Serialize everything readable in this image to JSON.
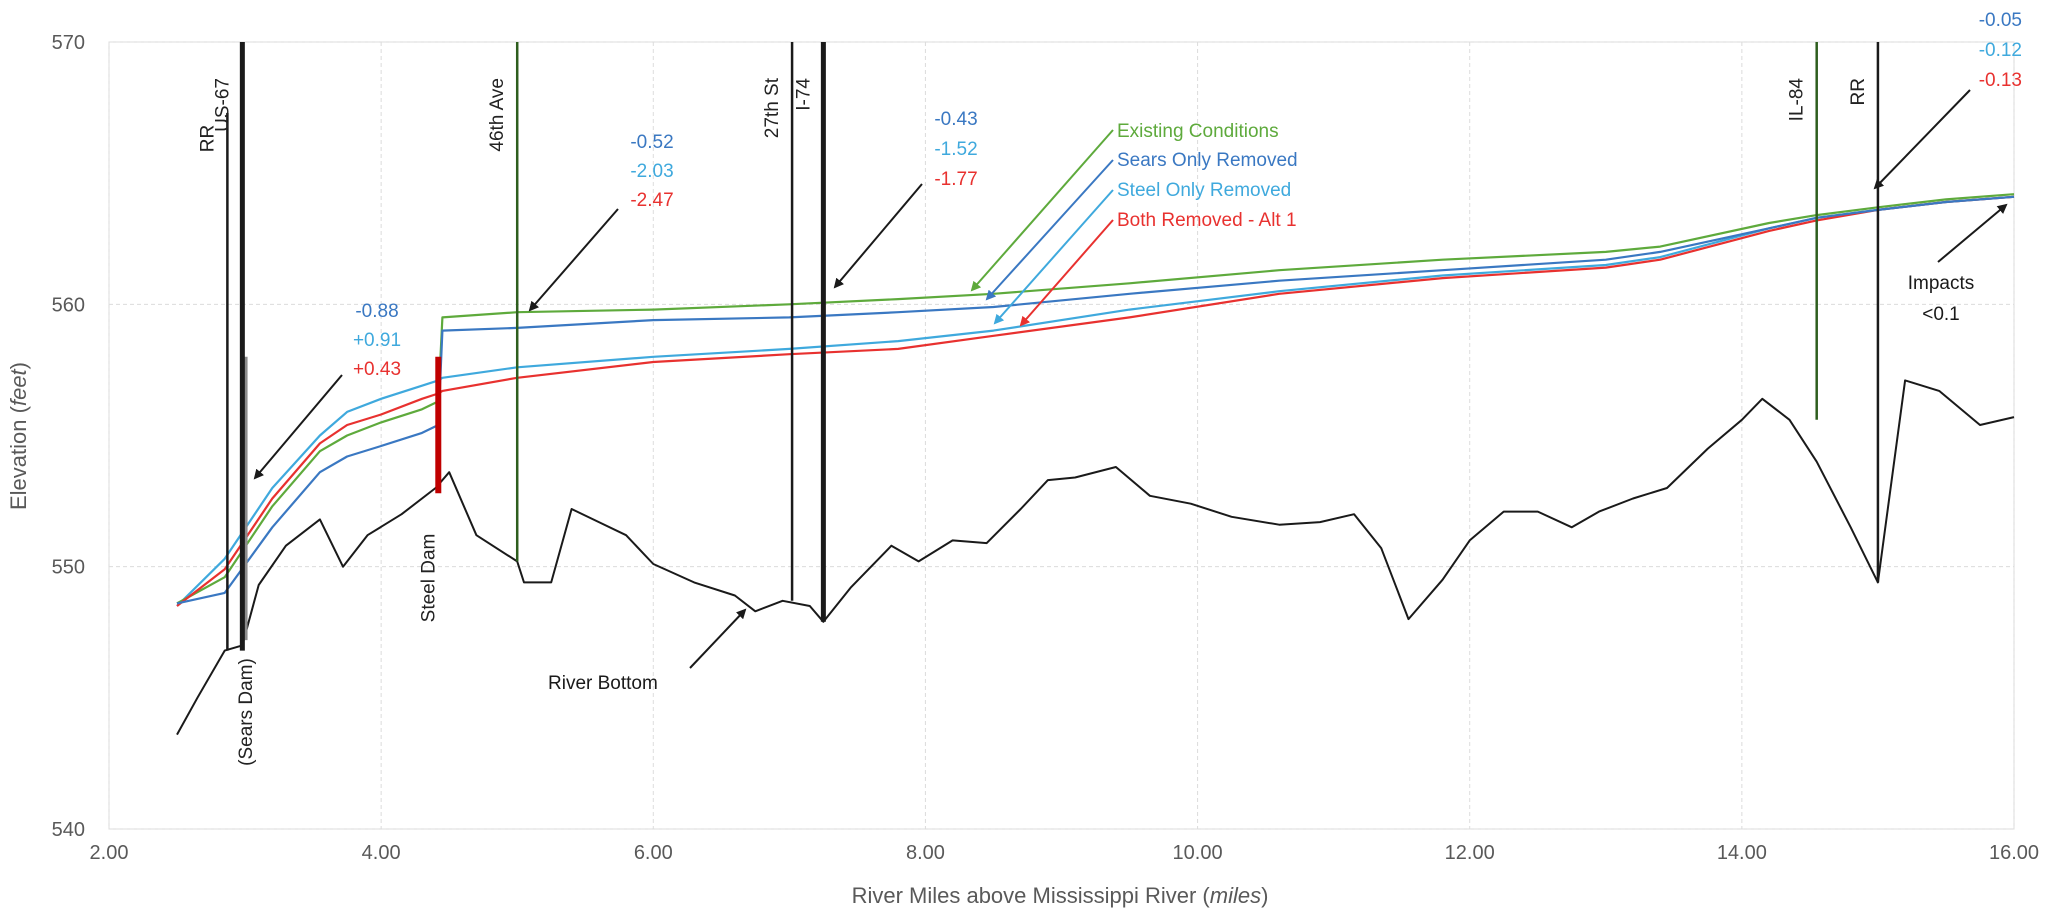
{
  "chart_data": {
    "type": "line",
    "title": "",
    "xlabel": "River Miles above Mississippi River",
    "xlabel_unit": "miles",
    "ylabel": "Elevation",
    "ylabel_unit": "feet",
    "xlim": [
      2.0,
      16.0
    ],
    "ylim": [
      540,
      570
    ],
    "x_ticks": [
      "2.00",
      "4.00",
      "6.00",
      "8.00",
      "10.00",
      "12.00",
      "14.00",
      "16.00"
    ],
    "y_ticks": [
      "540",
      "550",
      "560",
      "570"
    ],
    "grid": true,
    "legend_placement": "annotations near curves",
    "colors": {
      "existing": "#5eaa3c",
      "sears": "#3a78c2",
      "steel": "#3fa9dd",
      "both": "#e8312f",
      "river_bottom": "#1a1a1a",
      "steel_dam": "#c00000",
      "sears_dam": "#8c8c8c",
      "grid": "#dcdcdc"
    },
    "series": [
      {
        "key": "existing",
        "name": "Existing Conditions",
        "x": [
          2.5,
          2.85,
          3.2,
          3.55,
          3.75,
          4.0,
          4.3,
          4.42,
          4.45,
          5.0,
          6.0,
          7.0,
          7.8,
          8.5,
          9.5,
          10.6,
          11.8,
          13.0,
          13.4,
          14.2,
          14.55,
          15.0,
          15.5,
          16.0
        ],
        "y": [
          548.6,
          549.6,
          552.3,
          554.4,
          555.0,
          555.5,
          556.0,
          556.3,
          559.5,
          559.7,
          559.8,
          560.0,
          560.2,
          560.4,
          560.8,
          561.3,
          561.7,
          562.0,
          562.2,
          563.1,
          563.4,
          563.7,
          564.0,
          564.2
        ]
      },
      {
        "key": "sears",
        "name": "Sears Only Removed",
        "x": [
          2.5,
          2.85,
          3.2,
          3.55,
          3.75,
          4.0,
          4.3,
          4.42,
          4.45,
          5.0,
          6.0,
          7.0,
          7.8,
          8.5,
          9.5,
          10.6,
          11.8,
          13.0,
          13.4,
          14.2,
          14.55,
          15.0,
          15.5,
          16.0
        ],
        "y": [
          548.6,
          549.0,
          551.5,
          553.6,
          554.2,
          554.6,
          555.1,
          555.4,
          559.0,
          559.1,
          559.4,
          559.5,
          559.7,
          559.9,
          560.4,
          560.9,
          561.3,
          561.7,
          562.0,
          562.9,
          563.3,
          563.6,
          563.9,
          564.1
        ]
      },
      {
        "key": "steel",
        "name": "Steel Only Removed",
        "x": [
          2.5,
          2.85,
          3.2,
          3.55,
          3.75,
          4.0,
          4.3,
          4.42,
          4.45,
          5.0,
          6.0,
          7.0,
          7.8,
          8.5,
          9.5,
          10.6,
          11.8,
          13.0,
          13.4,
          14.2,
          14.55,
          15.0,
          15.5,
          16.0
        ],
        "y": [
          548.5,
          550.3,
          553.0,
          555.0,
          555.9,
          556.4,
          556.9,
          557.1,
          557.2,
          557.6,
          558.0,
          558.3,
          558.6,
          559.0,
          559.8,
          560.5,
          561.1,
          561.5,
          561.8,
          562.9,
          563.3,
          563.6,
          563.9,
          564.1
        ]
      },
      {
        "key": "both",
        "name": "Both Removed - Alt 1",
        "x": [
          2.5,
          2.85,
          3.2,
          3.55,
          3.75,
          4.0,
          4.3,
          4.42,
          4.45,
          5.0,
          6.0,
          7.0,
          7.8,
          8.5,
          9.5,
          10.6,
          11.8,
          13.0,
          13.4,
          14.2,
          14.55,
          15.0,
          15.5,
          16.0
        ],
        "y": [
          548.5,
          549.9,
          552.6,
          554.7,
          555.4,
          555.8,
          556.4,
          556.6,
          556.7,
          557.2,
          557.8,
          558.1,
          558.3,
          558.8,
          559.5,
          560.4,
          561.0,
          561.4,
          561.7,
          562.8,
          563.2,
          563.6,
          563.9,
          564.1
        ]
      },
      {
        "key": "river_bottom",
        "name": "River Bottom",
        "x": [
          2.5,
          2.65,
          2.85,
          2.98,
          3.1,
          3.3,
          3.55,
          3.72,
          3.9,
          4.15,
          4.4,
          4.5,
          4.7,
          5.0,
          5.05,
          5.25,
          5.4,
          5.6,
          5.8,
          6.0,
          6.3,
          6.6,
          6.75,
          6.95,
          7.15,
          7.25,
          7.45,
          7.75,
          7.95,
          8.2,
          8.45,
          8.7,
          8.9,
          9.1,
          9.4,
          9.65,
          9.95,
          10.25,
          10.6,
          10.9,
          11.15,
          11.35,
          11.55,
          11.8,
          12.0,
          12.25,
          12.5,
          12.75,
          12.95,
          13.2,
          13.45,
          13.75,
          14.0,
          14.15,
          14.35,
          14.55,
          14.8,
          15.0,
          15.2,
          15.45,
          15.75,
          16.0
        ],
        "y": [
          543.6,
          545.0,
          546.8,
          547.0,
          549.3,
          550.8,
          551.8,
          550.0,
          551.2,
          552.0,
          553.0,
          553.6,
          551.2,
          550.2,
          549.4,
          549.4,
          552.2,
          551.7,
          551.2,
          550.1,
          549.4,
          548.9,
          548.3,
          548.7,
          548.5,
          547.9,
          549.2,
          550.8,
          550.2,
          551.0,
          550.9,
          552.2,
          553.3,
          553.4,
          553.8,
          552.7,
          552.4,
          551.9,
          551.6,
          551.7,
          552.0,
          550.7,
          548.0,
          549.5,
          551.0,
          552.1,
          552.1,
          551.5,
          552.1,
          552.6,
          553.0,
          554.5,
          555.6,
          556.4,
          555.6,
          554.0,
          551.5,
          549.4,
          557.1,
          556.7,
          555.4,
          555.7
        ]
      }
    ],
    "structures": [
      {
        "label": "RR",
        "x": 2.87,
        "y_top": 567.3,
        "y_bottom": 546.8,
        "color": "#1a1a1a",
        "weight": "thin"
      },
      {
        "label": "US-67",
        "x": 2.98,
        "y_top": 570,
        "y_bottom": 546.8,
        "color": "#1a1a1a",
        "weight": "thick"
      },
      {
        "label": "46th Ave",
        "x": 5.0,
        "y_top": 570,
        "y_bottom": 550.2,
        "color": "#2e5e1e",
        "weight": "thin"
      },
      {
        "label": "27th St",
        "x": 7.02,
        "y_top": 570,
        "y_bottom": 548.7,
        "color": "#1a1a1a",
        "weight": "thin"
      },
      {
        "label": "I-74",
        "x": 7.25,
        "y_top": 570,
        "y_bottom": 547.9,
        "color": "#1a1a1a",
        "weight": "thick"
      },
      {
        "label": "IL-84",
        "x": 14.55,
        "y_top": 570,
        "y_bottom": 555.6,
        "color": "#2e5e1e",
        "weight": "thin"
      },
      {
        "label": "RR",
        "x": 15.0,
        "y_top": 570,
        "y_bottom": 549.4,
        "color": "#1a1a1a",
        "weight": "thin"
      }
    ],
    "dams": [
      {
        "label": "Steel Dam",
        "x": 4.42,
        "y_top": 558.0,
        "y_bottom": 552.8,
        "color": "#c00000"
      },
      {
        "label": "(Sears Dam)",
        "x": 3.0,
        "y_top": 558.0,
        "y_bottom": 547.2,
        "color": "#8c8c8c"
      }
    ],
    "annotations": [
      {
        "id": "g1",
        "values": [
          {
            "text": "-0.88",
            "color": "#3a78c2"
          },
          {
            "text": "+0.91",
            "color": "#3fa9dd"
          },
          {
            "text": "+0.43",
            "color": "#e8312f"
          }
        ]
      },
      {
        "id": "g2",
        "values": [
          {
            "text": "-0.52",
            "color": "#3a78c2"
          },
          {
            "text": "-2.03",
            "color": "#3fa9dd"
          },
          {
            "text": "-2.47",
            "color": "#e8312f"
          }
        ]
      },
      {
        "id": "g3",
        "values": [
          {
            "text": "-0.43",
            "color": "#3a78c2"
          },
          {
            "text": "-1.52",
            "color": "#3fa9dd"
          },
          {
            "text": "-1.77",
            "color": "#e8312f"
          }
        ]
      },
      {
        "id": "g4",
        "values": [
          {
            "text": "-0.05",
            "color": "#3a78c2"
          },
          {
            "text": "-0.12",
            "color": "#3fa9dd"
          },
          {
            "text": "-0.13",
            "color": "#e8312f"
          }
        ]
      }
    ],
    "impacts_note": {
      "line1": "Impacts",
      "line2": "<0.1"
    },
    "river_bottom_label": "River Bottom"
  }
}
